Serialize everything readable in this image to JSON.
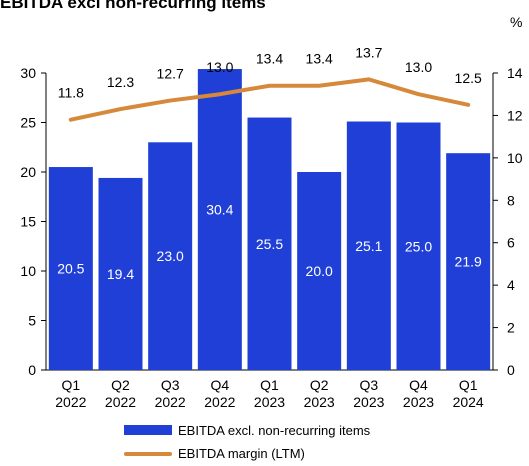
{
  "chart_data": {
    "type": "bar+line",
    "title": "EBITDA excl non-recurring items",
    "categories": [
      "Q1\n2022",
      "Q2\n2022",
      "Q3\n2022",
      "Q4\n2022",
      "Q1\n2023",
      "Q2\n2023",
      "Q3\n2023",
      "Q4\n2023",
      "Q1\n2024"
    ],
    "category_lines": [
      [
        "Q1",
        "2022"
      ],
      [
        "Q2",
        "2022"
      ],
      [
        "Q3",
        "2022"
      ],
      [
        "Q4",
        "2022"
      ],
      [
        "Q1",
        "2023"
      ],
      [
        "Q2",
        "2023"
      ],
      [
        "Q3",
        "2023"
      ],
      [
        "Q4",
        "2023"
      ],
      [
        "Q1",
        "2024"
      ]
    ],
    "series": [
      {
        "name": "EBITDA excl. non-recurring items",
        "type": "bar",
        "axis": "left",
        "values": [
          20.5,
          19.4,
          23.0,
          30.4,
          25.5,
          20.0,
          25.1,
          25.0,
          21.9
        ],
        "labels": [
          "20.5",
          "19.4",
          "23.0",
          "30.4",
          "25.5",
          "20.0",
          "25.1",
          "25.0",
          "21.9"
        ]
      },
      {
        "name": "EBITDA margin (LTM)",
        "type": "line",
        "axis": "right",
        "values": [
          11.8,
          12.3,
          12.7,
          13.0,
          13.4,
          13.4,
          13.7,
          13.0,
          12.5
        ],
        "labels": [
          "11.8",
          "12.3",
          "12.7",
          "13.0",
          "13.4",
          "13.4",
          "13.7",
          "13.0",
          "12.5"
        ]
      }
    ],
    "y_left": {
      "ylim": [
        0,
        30
      ],
      "ticks": [
        "0",
        "5",
        "10",
        "15",
        "20",
        "25",
        "30"
      ]
    },
    "y_right": {
      "ylim": [
        0,
        14
      ],
      "ticks": [
        "0",
        "2",
        "4",
        "6",
        "8",
        "10",
        "12",
        "14"
      ],
      "unit": "%"
    },
    "legend_position": "bottom",
    "grid": false,
    "colors": {
      "bar": "#1f3fd6",
      "line": "#d6893a",
      "bar_label": "#ffffff"
    }
  }
}
